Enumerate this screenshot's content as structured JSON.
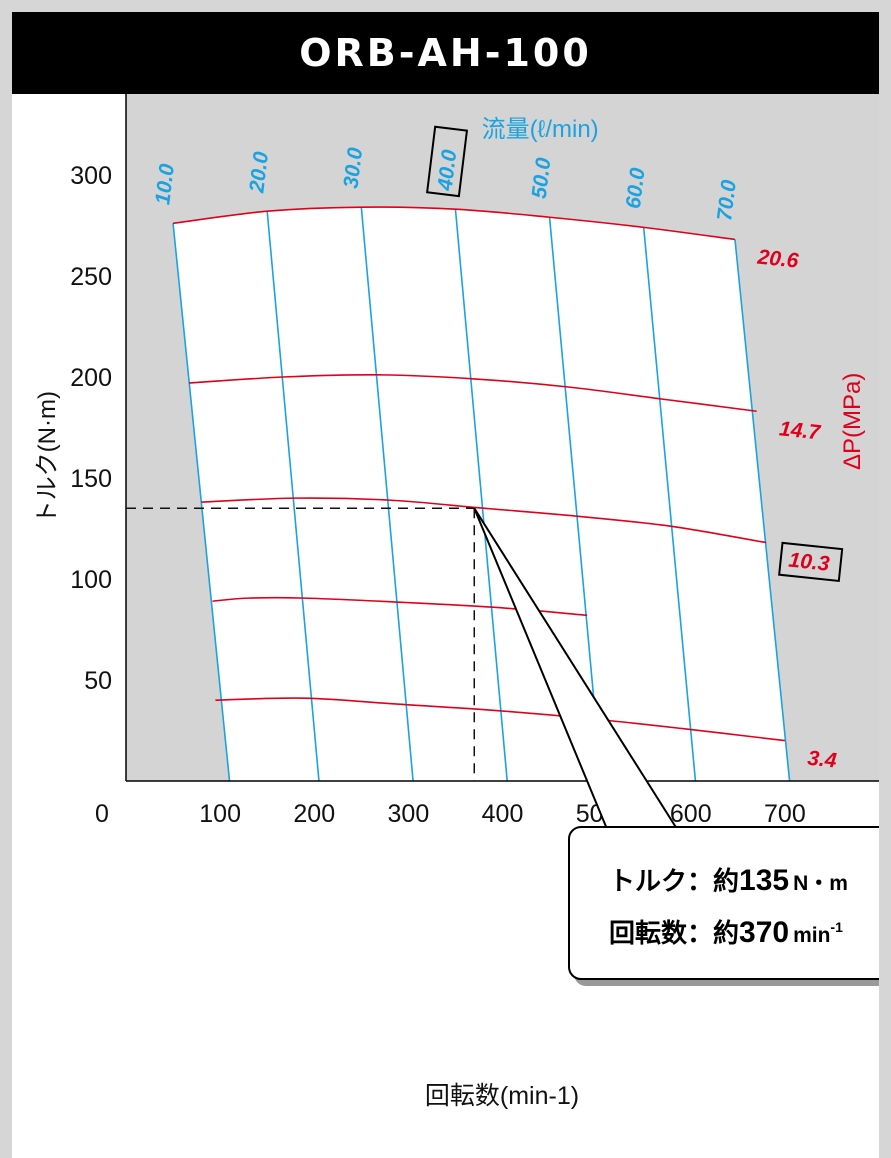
{
  "chart_data": {
    "type": "line",
    "title": "ORB-AH-100",
    "xlabel": "回転数(min-1)",
    "ylabel": "トルク(N·m)",
    "flow_label": "流量(ℓ/min)",
    "pressure_label": "ΔP(MPa)",
    "x_ticks": [
      "0",
      "100",
      "200",
      "300",
      "400",
      "500",
      "600",
      "700"
    ],
    "y_ticks": [
      "50",
      "100",
      "150",
      "200",
      "250",
      "300"
    ],
    "xlim": [
      0,
      800
    ],
    "ylim": [
      0,
      340
    ],
    "flow_series": [
      {
        "name": "10.0",
        "points": [
          [
            50,
            276
          ],
          [
            110,
            0
          ]
        ]
      },
      {
        "name": "20.0",
        "points": [
          [
            150,
            282
          ],
          [
            205,
            0
          ]
        ]
      },
      {
        "name": "30.0",
        "points": [
          [
            250,
            284
          ],
          [
            305,
            0
          ]
        ]
      },
      {
        "name": "40.0",
        "points": [
          [
            350,
            283
          ],
          [
            405,
            0
          ]
        ],
        "highlight": true
      },
      {
        "name": "50.0",
        "points": [
          [
            450,
            279
          ],
          [
            505,
            0
          ]
        ]
      },
      {
        "name": "60.0",
        "points": [
          [
            550,
            274
          ],
          [
            605,
            0
          ]
        ]
      },
      {
        "name": "70.0",
        "points": [
          [
            647,
            268
          ],
          [
            705,
            0
          ]
        ]
      }
    ],
    "pressure_series": [
      {
        "name": "20.6",
        "points": [
          [
            50,
            276
          ],
          [
            150,
            282
          ],
          [
            250,
            284
          ],
          [
            350,
            283
          ],
          [
            450,
            279
          ],
          [
            550,
            274
          ],
          [
            647,
            268
          ]
        ]
      },
      {
        "name": "14.7",
        "points": [
          [
            67,
            197
          ],
          [
            170,
            200
          ],
          [
            270,
            201
          ],
          [
            370,
            199
          ],
          [
            470,
            195
          ],
          [
            570,
            189
          ],
          [
            670,
            183
          ]
        ]
      },
      {
        "name": "10.3",
        "points": [
          [
            80,
            138
          ],
          [
            180,
            140
          ],
          [
            280,
            139
          ],
          [
            380,
            135
          ],
          [
            480,
            131
          ],
          [
            580,
            126
          ],
          [
            680,
            118
          ]
        ],
        "highlight": true
      },
      {
        "name": "3.4",
        "points": [
          [
            95,
            40
          ],
          [
            190,
            41
          ],
          [
            290,
            38
          ],
          [
            390,
            35
          ],
          [
            490,
            31
          ],
          [
            590,
            26
          ],
          [
            700,
            20
          ]
        ]
      }
    ],
    "partial_curve": {
      "points": [
        [
          92,
          89
        ],
        [
          130,
          90.5
        ],
        [
          190,
          90.5
        ],
        [
          290,
          88.5
        ],
        [
          390,
          86
        ],
        [
          490,
          82
        ]
      ]
    },
    "operating_point": {
      "x": 370,
      "y": 135
    },
    "callout": {
      "torque_label": "トルク：約",
      "torque_value": "135",
      "torque_unit": "N・m",
      "speed_label": "回転数：約",
      "speed_value": "370",
      "speed_unit": "min",
      "speed_unit_sup": "-1"
    },
    "colors": {
      "flow": "#1aa3e0",
      "pressure": "#e0001b",
      "gray": "#d4d4d4"
    }
  }
}
